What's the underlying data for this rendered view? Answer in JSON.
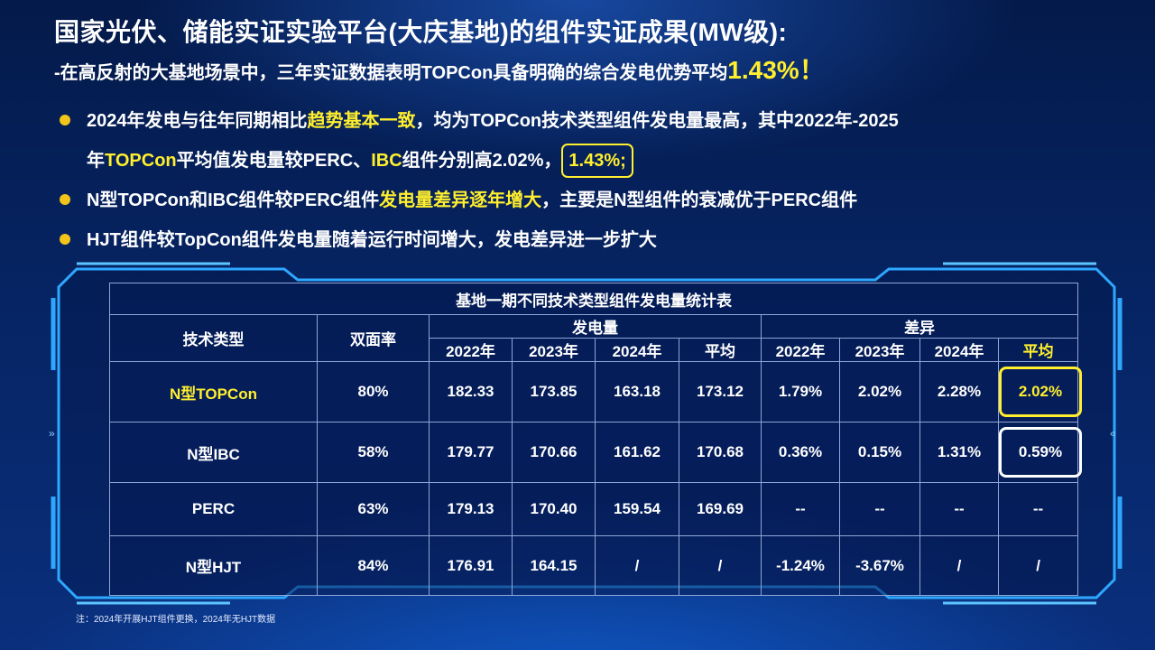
{
  "title": "国家光伏、储能实证实验平台(大庆基地)的组件实证成果(MW级):",
  "subtitle": {
    "prefix": "-在高反射的大基地场景中，三年实证数据表明TOPCon具备明确的综合发电优势平均",
    "highlight": "1.43%！"
  },
  "bullets": [
    {
      "p1": "2024年发电与往年同期相比",
      "hl1": "趋势基本一致",
      "p2": "，均为TOPCon技术类型组件发电量最高，其中2022年-2025",
      "p3": "年",
      "hl2": "TOPCon",
      "p4": "平均值发电量较PERC、",
      "hl3": "IBC",
      "p5": "组件分别高2.02%，",
      "boxed": "1.43%;"
    },
    {
      "p1": "N型TOPCon和IBC组件较PERC组件",
      "hl1": "发电量差异逐年增大",
      "p2": "，主要是N型组件的衰减优于PERC组件"
    },
    {
      "text": "HJT组件较TopCon组件发电量随着运行时间增大，发电差异进一步扩大"
    }
  ],
  "table": {
    "caption": "基地一期不同技术类型组件发电量统计表",
    "col_type": "技术类型",
    "col_bifacial": "双面率",
    "group_gen": "发电量",
    "group_diff": "差异",
    "years_gen": [
      "2022年",
      "2023年",
      "2024年",
      "平均"
    ],
    "years_diff": [
      "2022年",
      "2023年",
      "2024年",
      "平均"
    ],
    "rows": [
      {
        "type": "N型TOPCon",
        "bifacial": "80%",
        "gen": [
          "182.33",
          "173.85",
          "163.18",
          "173.12"
        ],
        "diff": [
          "1.79%",
          "2.02%",
          "2.28%",
          "2.02%"
        ]
      },
      {
        "type": "N型IBC",
        "bifacial": "58%",
        "gen": [
          "179.77",
          "170.66",
          "161.62",
          "170.68"
        ],
        "diff": [
          "0.36%",
          "0.15%",
          "1.31%",
          "0.59%"
        ]
      },
      {
        "type": "PERC",
        "bifacial": "63%",
        "gen": [
          "179.13",
          "170.40",
          "159.54",
          "169.69"
        ],
        "diff": [
          "--",
          "--",
          "--",
          "--"
        ]
      },
      {
        "type": "N型HJT",
        "bifacial": "84%",
        "gen": [
          "176.91",
          "164.15",
          "/",
          "/"
        ],
        "diff": [
          "-1.24%",
          "-3.67%",
          "/",
          "/"
        ]
      }
    ]
  },
  "note": "注：2024年开展HJT组件更换，2024年无HJT数据",
  "colors": {
    "highlight": "#ffef2e",
    "bullet_dot": "#f3c51a",
    "frame": "#2ea8ff",
    "background": "#062463"
  }
}
